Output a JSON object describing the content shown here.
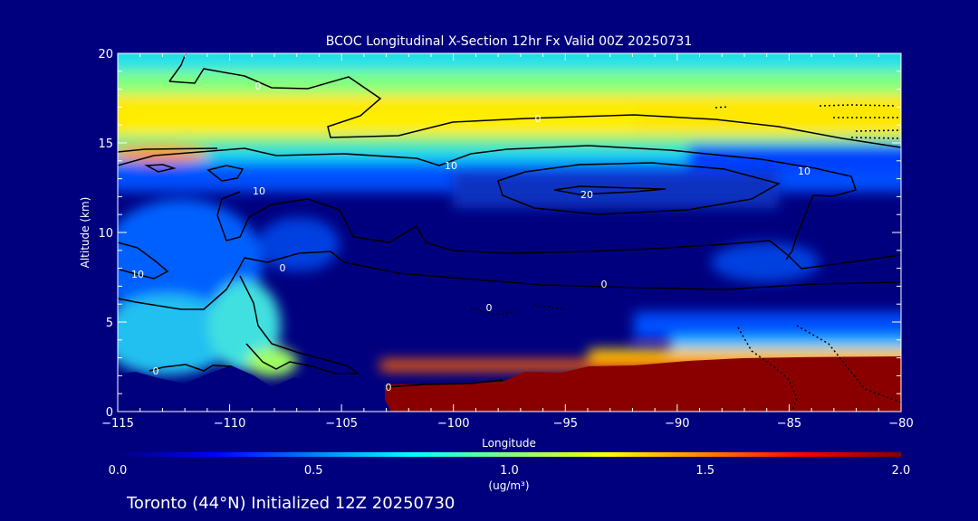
{
  "background": "#00007f",
  "chart_data": {
    "type": "heatmap",
    "title": "BCOC Longitudinal X-Section 12hr  Fx Valid 00Z 20250731",
    "subtitle": "Toronto (44°N) Initialized 12Z 20250730",
    "xlabel": "Longitude",
    "ylabel": "Altitude (km)",
    "xlim": [
      -115,
      -80
    ],
    "ylim": [
      0,
      20
    ],
    "x_ticks": [
      -115,
      -110,
      -105,
      -100,
      -95,
      -90,
      -85,
      -80
    ],
    "y_ticks": [
      0,
      5,
      10,
      15,
      20
    ],
    "x_tick_labels": [
      "−115",
      "−110",
      "−105",
      "−100",
      "−95",
      "−90",
      "−85",
      "−80"
    ],
    "y_tick_labels": [
      "0",
      "5",
      "10",
      "15",
      "20"
    ],
    "colorbar": {
      "min": 0.0,
      "max": 2.0,
      "ticks": [
        0.0,
        0.5,
        1.0,
        1.5,
        2.0
      ],
      "tick_labels": [
        "0.0",
        "0.5",
        "1.0",
        "1.5",
        "2.0"
      ],
      "units": "(ug/m³)",
      "colormap": [
        "#00007f",
        "#0000ff",
        "#0080ff",
        "#00ffff",
        "#80ff80",
        "#ffff00",
        "#ff8000",
        "#ff0000",
        "#800000"
      ]
    },
    "contour_labels": [
      "0",
      "0",
      "0",
      "0",
      "0",
      "0",
      "0",
      "10",
      "10",
      "10",
      "10",
      "20"
    ],
    "grid": false,
    "legend": "colorbar-bottom"
  }
}
